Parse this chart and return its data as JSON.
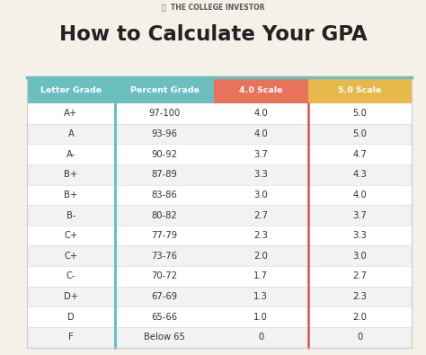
{
  "title": "How to Calculate Your GPA",
  "brand": "⎓  THE COLLEGE INVESTOR",
  "bg_color": "#f5f0e8",
  "header_col1_color": "#6bbfbf",
  "header_col2_color": "#6bbfbf",
  "header_col3_color": "#e8735a",
  "header_col4_color": "#e8b84b",
  "row_odd_color": "#ffffff",
  "row_even_color": "#f2f2f2",
  "text_color": "#333333",
  "col_border_teal": "#6bbfbf",
  "col_border_red": "#d9534f",
  "col_headers": [
    "Letter Grade",
    "Percent Grade",
    "4.0 Scale",
    "5.0 Scale"
  ],
  "rows": [
    [
      "A+",
      "97-100",
      "4.0",
      "5.0"
    ],
    [
      "A",
      "93-96",
      "4.0",
      "5.0"
    ],
    [
      "A-",
      "90-92",
      "3.7",
      "4.7"
    ],
    [
      "B+",
      "87-89",
      "3.3",
      "4.3"
    ],
    [
      "B+",
      "83-86",
      "3.0",
      "4.0"
    ],
    [
      "B-",
      "80-82",
      "2.7",
      "3.7"
    ],
    [
      "C+",
      "77-79",
      "2.3",
      "3.3"
    ],
    [
      "C+",
      "73-76",
      "2.0",
      "3.0"
    ],
    [
      "C-",
      "70-72",
      "1.7",
      "2.7"
    ],
    [
      "D+",
      "67-69",
      "1.3",
      "2.3"
    ],
    [
      "D",
      "65-66",
      "1.0",
      "2.0"
    ],
    [
      "F",
      "Below 65",
      "0",
      "0"
    ]
  ]
}
